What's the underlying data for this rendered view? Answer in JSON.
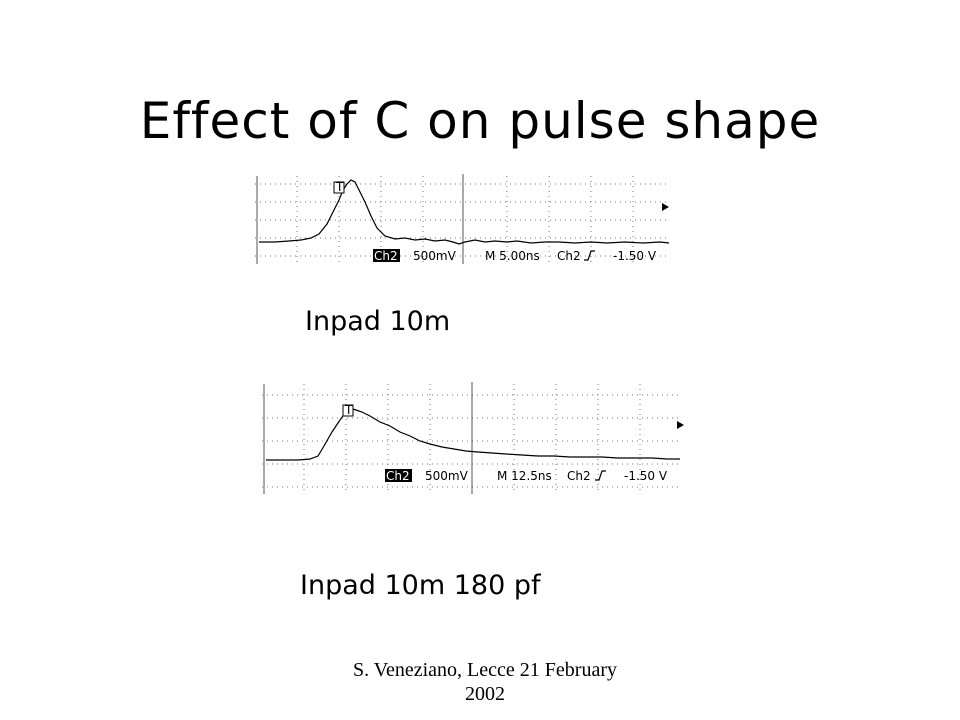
{
  "slide": {
    "title": "Effect of C on pulse shape",
    "footer": "S. Veneziano, Lecce 21 February 2002"
  },
  "scopes": [
    {
      "caption": "Inpad 10m",
      "trigger_marker": "T",
      "channel": "Ch2",
      "volts_per_div": "500mV",
      "timebase": "M 5.00ns",
      "trigger_source": "Ch2",
      "trigger_slope_icon": "rising-edge-icon",
      "trigger_level": "-1.50 V",
      "level_arrow_icon": "left-arrow-icon"
    },
    {
      "caption": "Inpad 10m 180 pf",
      "trigger_marker": "T",
      "channel": "Ch2",
      "volts_per_div": "500mV",
      "timebase": "M 12.5ns",
      "trigger_source": "Ch2",
      "trigger_slope_icon": "rising-edge-icon",
      "trigger_level": "-1.50 V",
      "level_arrow_icon": "left-arrow-icon"
    }
  ]
}
